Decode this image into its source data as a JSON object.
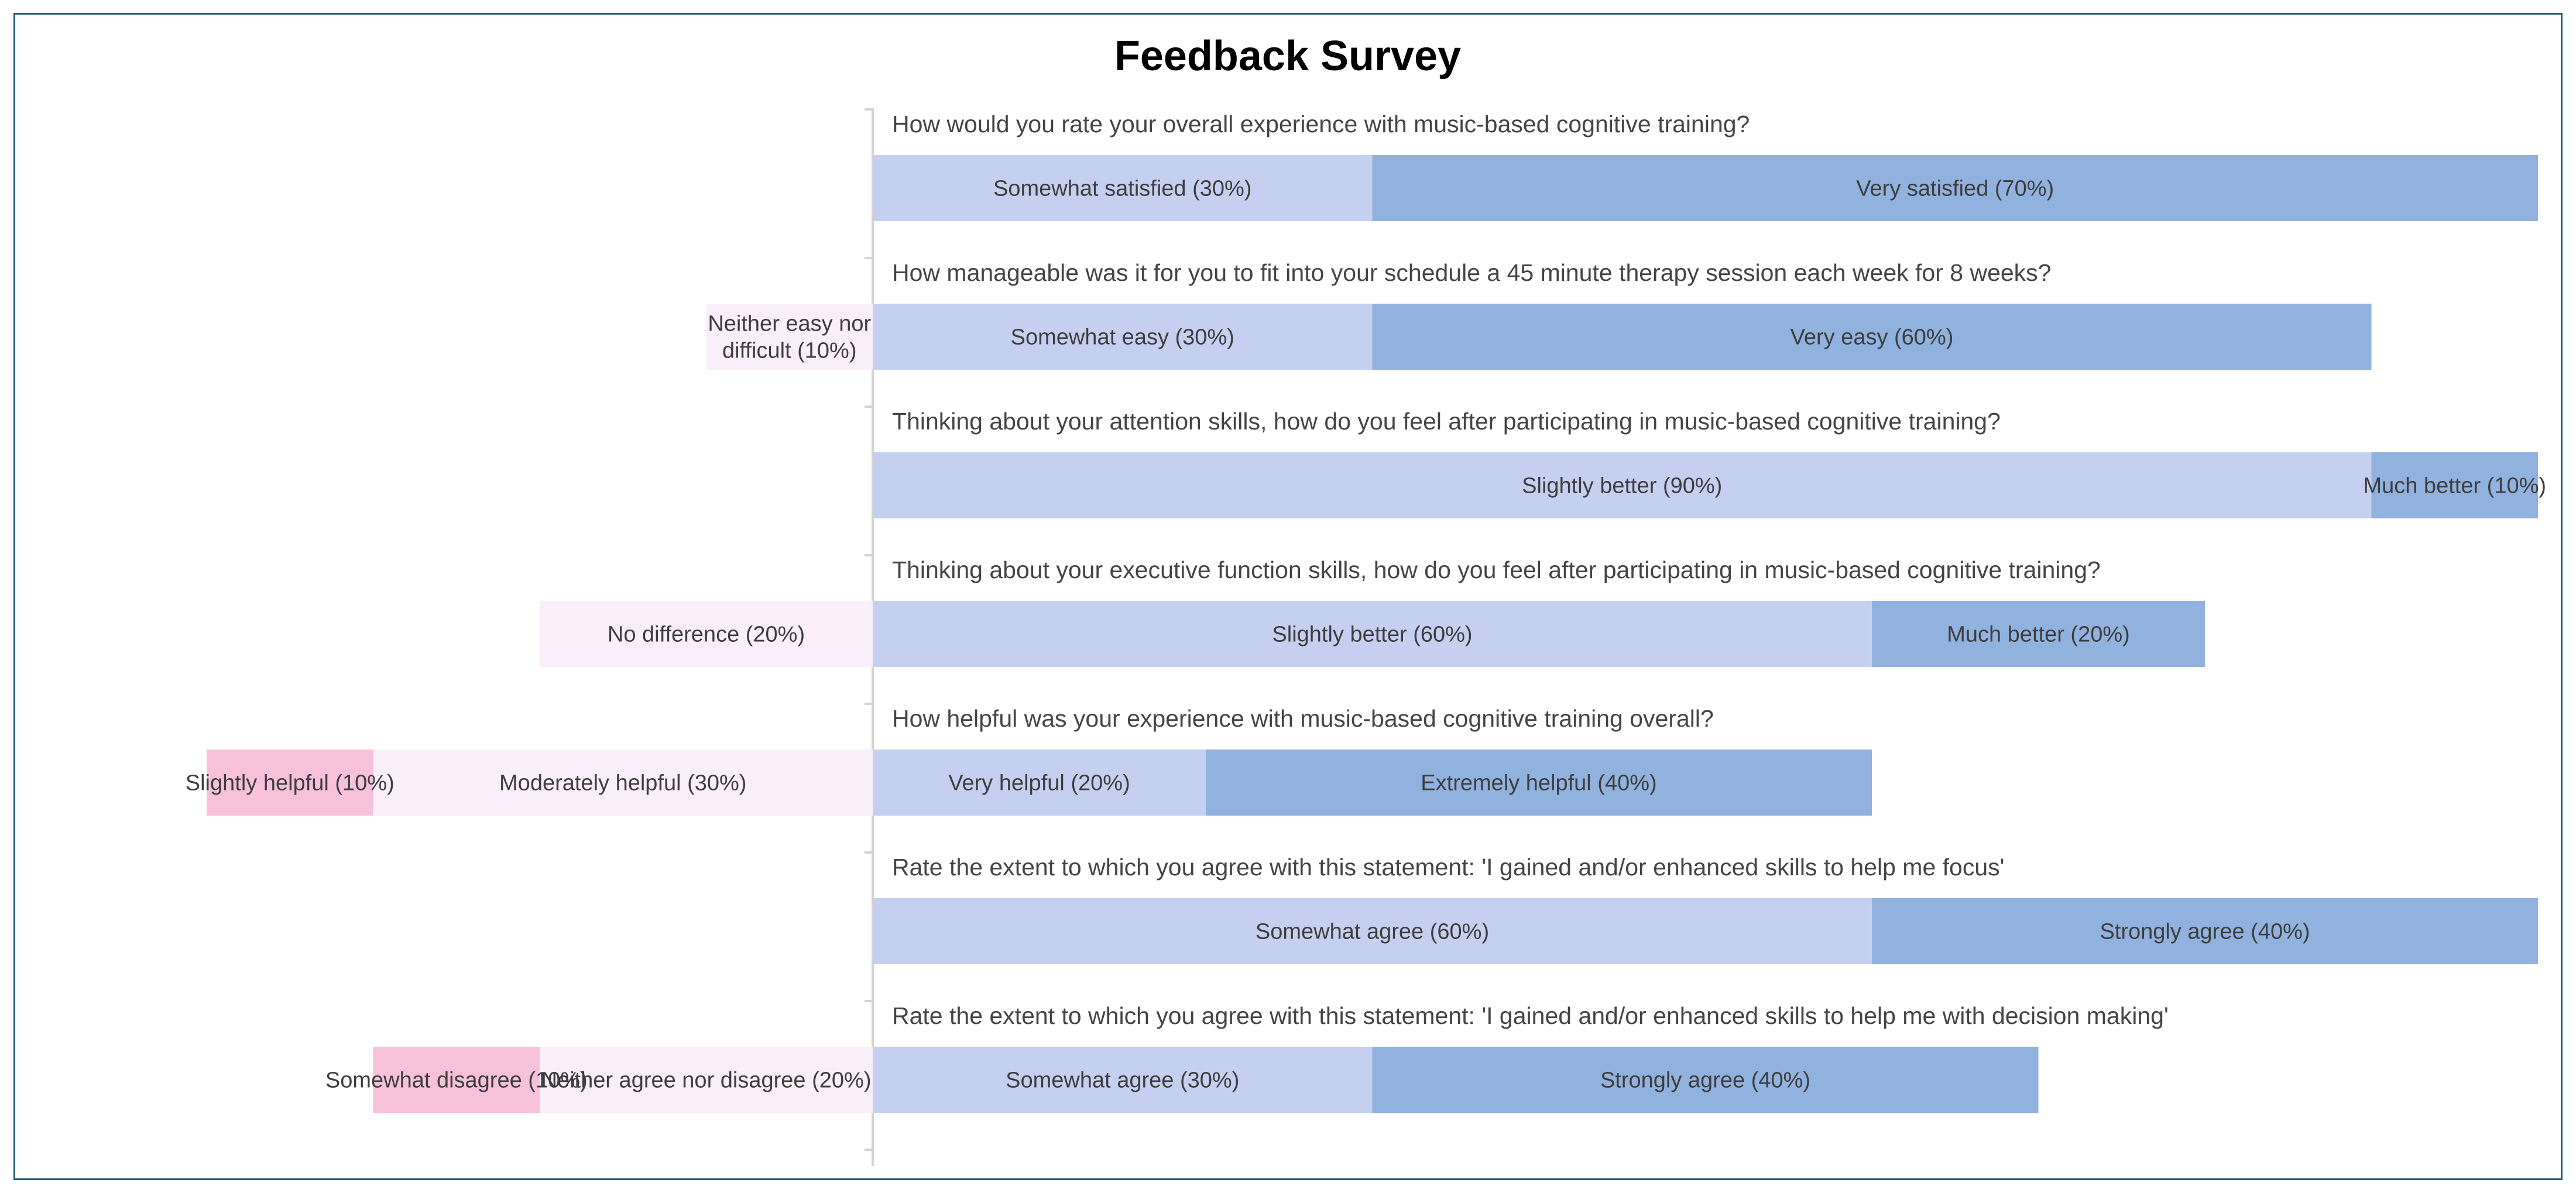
{
  "chart_data": {
    "type": "bar",
    "subtype": "diverging-stacked-horizontal",
    "title": "Feedback Survey",
    "unit": "percent",
    "colors": {
      "negative_strong": "#f7c1d9",
      "neutral": "#faeefa",
      "positive_moderate": "#c5d0f0",
      "positive_strong": "#91b2df",
      "frame": "#1f5f73",
      "axis": "#d4d4d4",
      "title_text": "#000000",
      "label_text": "#444444"
    },
    "questions": [
      {
        "question": "How would you rate your overall experience with music-based cognitive training?",
        "segments": [
          {
            "label": "Somewhat satisfied (30%)",
            "value": 30,
            "category": "positive_moderate"
          },
          {
            "label": "Very satisfied (70%)",
            "value": 70,
            "category": "positive_strong"
          }
        ]
      },
      {
        "question": "How manageable was it for you to fit into your schedule a 45 minute therapy session each week for 8 weeks?",
        "segments": [
          {
            "label": "Neither easy nor difficult (10%)",
            "value": 10,
            "category": "neutral"
          },
          {
            "label": "Somewhat easy (30%)",
            "value": 30,
            "category": "positive_moderate"
          },
          {
            "label": "Very easy (60%)",
            "value": 60,
            "category": "positive_strong"
          }
        ]
      },
      {
        "question": "Thinking about your attention skills, how do you feel after participating in music-based cognitive training?",
        "segments": [
          {
            "label": "Slightly better (90%)",
            "value": 90,
            "category": "positive_moderate"
          },
          {
            "label": "Much better (10%)",
            "value": 10,
            "category": "positive_strong"
          }
        ]
      },
      {
        "question": "Thinking about your executive function skills, how do you feel after participating in music-based cognitive training?",
        "segments": [
          {
            "label": "No difference (20%)",
            "value": 20,
            "category": "neutral"
          },
          {
            "label": "Slightly better (60%)",
            "value": 60,
            "category": "positive_moderate"
          },
          {
            "label": "Much better (20%)",
            "value": 20,
            "category": "positive_strong"
          }
        ]
      },
      {
        "question": "How helpful was your experience with music-based cognitive training overall?",
        "segments": [
          {
            "label": "Slightly helpful (10%)",
            "value": 10,
            "category": "negative_strong"
          },
          {
            "label": "Moderately helpful (30%)",
            "value": 30,
            "category": "neutral"
          },
          {
            "label": "Very helpful (20%)",
            "value": 20,
            "category": "positive_moderate"
          },
          {
            "label": "Extremely helpful (40%)",
            "value": 40,
            "category": "positive_strong"
          }
        ]
      },
      {
        "question": "Rate the extent to which you agree with this statement: 'I gained and/or enhanced skills to help me focus'",
        "segments": [
          {
            "label": "Somewhat agree (60%)",
            "value": 60,
            "category": "positive_moderate"
          },
          {
            "label": "Strongly agree (40%)",
            "value": 40,
            "category": "positive_strong"
          }
        ]
      },
      {
        "question": "Rate the extent to which you agree with this statement: 'I gained and/or enhanced skills to help me with decision making'",
        "segments": [
          {
            "label": "Somewhat disagree (10%)",
            "value": 10,
            "category": "negative_strong"
          },
          {
            "label": "Neither agree nor disagree (20%)",
            "value": 20,
            "category": "neutral"
          },
          {
            "label": "Somewhat agree (30%)",
            "value": 30,
            "category": "positive_moderate"
          },
          {
            "label": "Strongly agree (40%)",
            "value": 40,
            "category": "positive_strong"
          }
        ]
      }
    ]
  }
}
